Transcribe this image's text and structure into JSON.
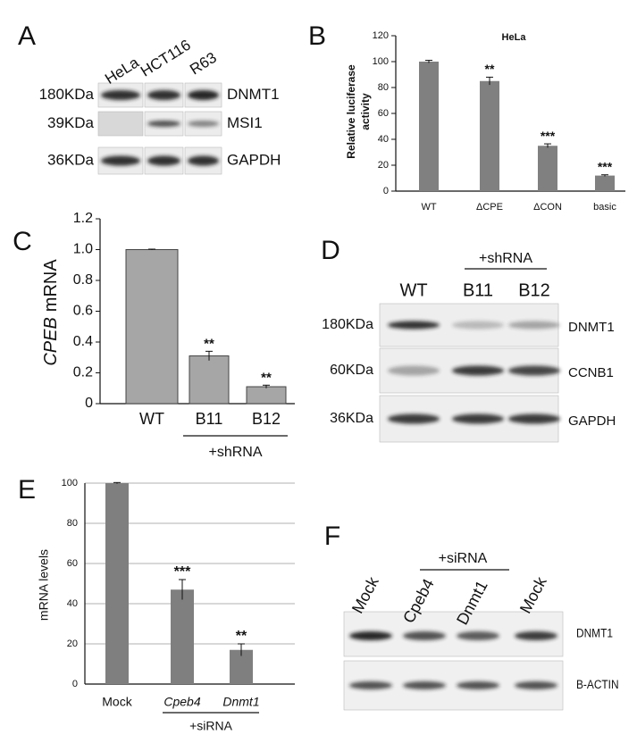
{
  "panel_labels": [
    "A",
    "B",
    "C",
    "D",
    "E",
    "F"
  ],
  "blot_a": {
    "lanes": [
      "HeLa",
      "HCT116",
      "R63"
    ],
    "sizes": [
      "180KDa",
      "39KDa",
      "36KDa"
    ],
    "proteins": [
      "DNMT1",
      "MSI1",
      "GAPDH"
    ]
  },
  "blot_d": {
    "group_label": "+shRNA",
    "lanes": [
      "WT",
      "B11",
      "B12"
    ],
    "sizes": [
      "180KDa",
      "60KDa",
      "36KDa"
    ],
    "proteins": [
      "DNMT1",
      "CCNB1",
      "GAPDH"
    ]
  },
  "blot_f": {
    "group_label": "+siRNA",
    "lanes": [
      "Mock",
      "Cpeb4",
      "Dnmt1",
      "Mock"
    ],
    "proteins": [
      "DNMT1",
      "B-ACTIN"
    ]
  },
  "chart_data": [
    {
      "type": "bar",
      "title": "HeLa",
      "ylabel": [
        "Relative luciferase",
        "activity"
      ],
      "categories": [
        "WT",
        "ΔCPE",
        "ΔCON",
        "basic"
      ],
      "values": [
        100,
        85,
        35,
        12
      ],
      "errors": [
        1,
        3,
        1.5,
        0.6
      ],
      "significance": [
        null,
        "**",
        "***",
        "***"
      ],
      "color": "#808080",
      "ylim": [
        0,
        120
      ],
      "yticks": [
        0,
        20,
        40,
        60,
        80,
        100,
        120
      ],
      "grid": false
    },
    {
      "type": "bar",
      "ylabel_gene": "CPEB",
      "ylabel": "mRNA",
      "categories": [
        "WT",
        "B11",
        "B12"
      ],
      "values": [
        1.0,
        0.31,
        0.11
      ],
      "errors": [
        0.003,
        0.03,
        0.01
      ],
      "significance": [
        null,
        "**",
        "**"
      ],
      "group_label": "+shRNA",
      "color": "#a6a6a6",
      "ylim": [
        0,
        1.2
      ],
      "yticks": [
        0,
        0.2,
        0.4,
        0.6,
        0.8,
        {
          "value": 1,
          "label": "1.0"
        },
        1.2
      ],
      "grid": false
    },
    {
      "type": "bar",
      "ylabel": "mRNA levels",
      "categories": [
        "Mock",
        "Cpeb4",
        "Dnmt1"
      ],
      "values": [
        100,
        47,
        17
      ],
      "errors": [
        0.3,
        5,
        3
      ],
      "significance": [
        null,
        "***",
        "**"
      ],
      "group_label": "+siRNA",
      "color": "#7f7f7f",
      "ylim": [
        0,
        100
      ],
      "yticks": [
        0,
        20,
        40,
        60,
        80,
        100
      ],
      "grid": true
    }
  ]
}
